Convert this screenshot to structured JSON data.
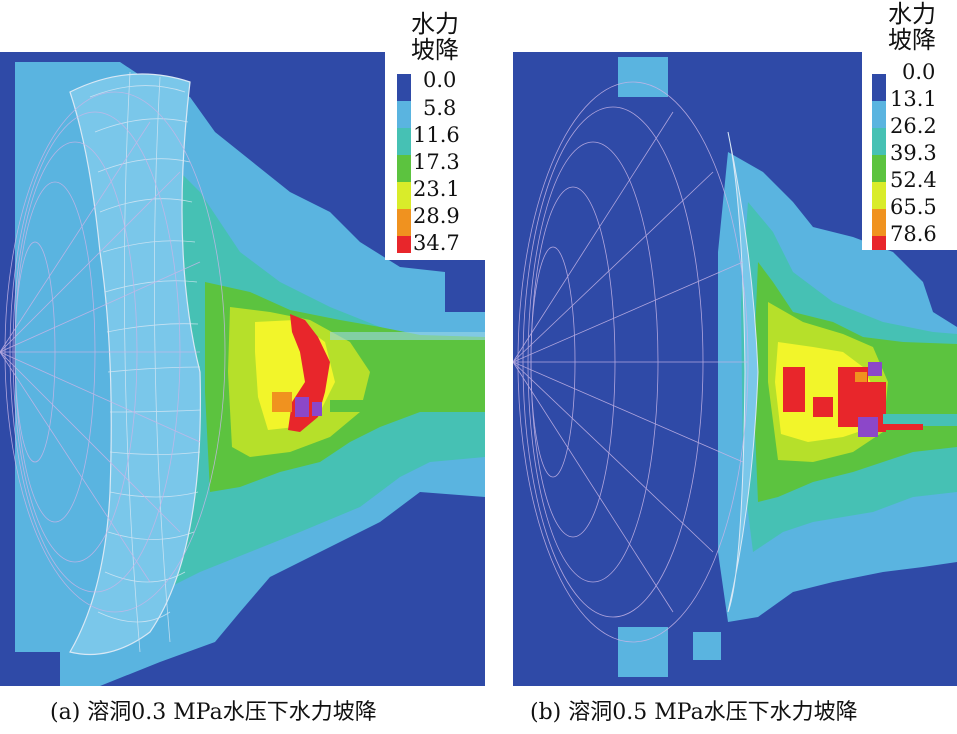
{
  "colors": {
    "background_deep": "#2f4aa7",
    "zone_light_blue": "#5ab4e0",
    "zone_cyan": "#46c1b4",
    "zone_green": "#5cc33f",
    "zone_yellow_green": "#b6e02a",
    "zone_yellow": "#f2f52a",
    "zone_orange": "#f0921f",
    "zone_red": "#e8262b",
    "zone_purple": "#8c47c9",
    "mesh_line": "#c8b6e8"
  },
  "panel_a": {
    "legend_title_line1": "水力",
    "legend_title_line2": "坡降",
    "legend_values": [
      "0.0",
      "5.8",
      "11.6",
      "17.3",
      "23.1",
      "28.9",
      "34.7"
    ],
    "legend_colors": [
      "#2f4aa7",
      "#5ab4e0",
      "#46c1b4",
      "#5cc33f",
      "#d9ec2a",
      "#f0921f",
      "#e8262b"
    ],
    "caption": "(a) 溶洞0.3 MPa水压下水力坡降"
  },
  "panel_b": {
    "legend_title_line1": "水力",
    "legend_title_line2": "坡降",
    "legend_values": [
      "0.0",
      "13.1",
      "26.2",
      "39.3",
      "52.4",
      "65.5",
      "78.6"
    ],
    "legend_colors": [
      "#2f4aa7",
      "#5ab4e0",
      "#46c1b4",
      "#5cc33f",
      "#d9ec2a",
      "#f0921f",
      "#e8262b"
    ],
    "caption": "(b) 溶洞0.5 MPa水压下水力坡降"
  }
}
